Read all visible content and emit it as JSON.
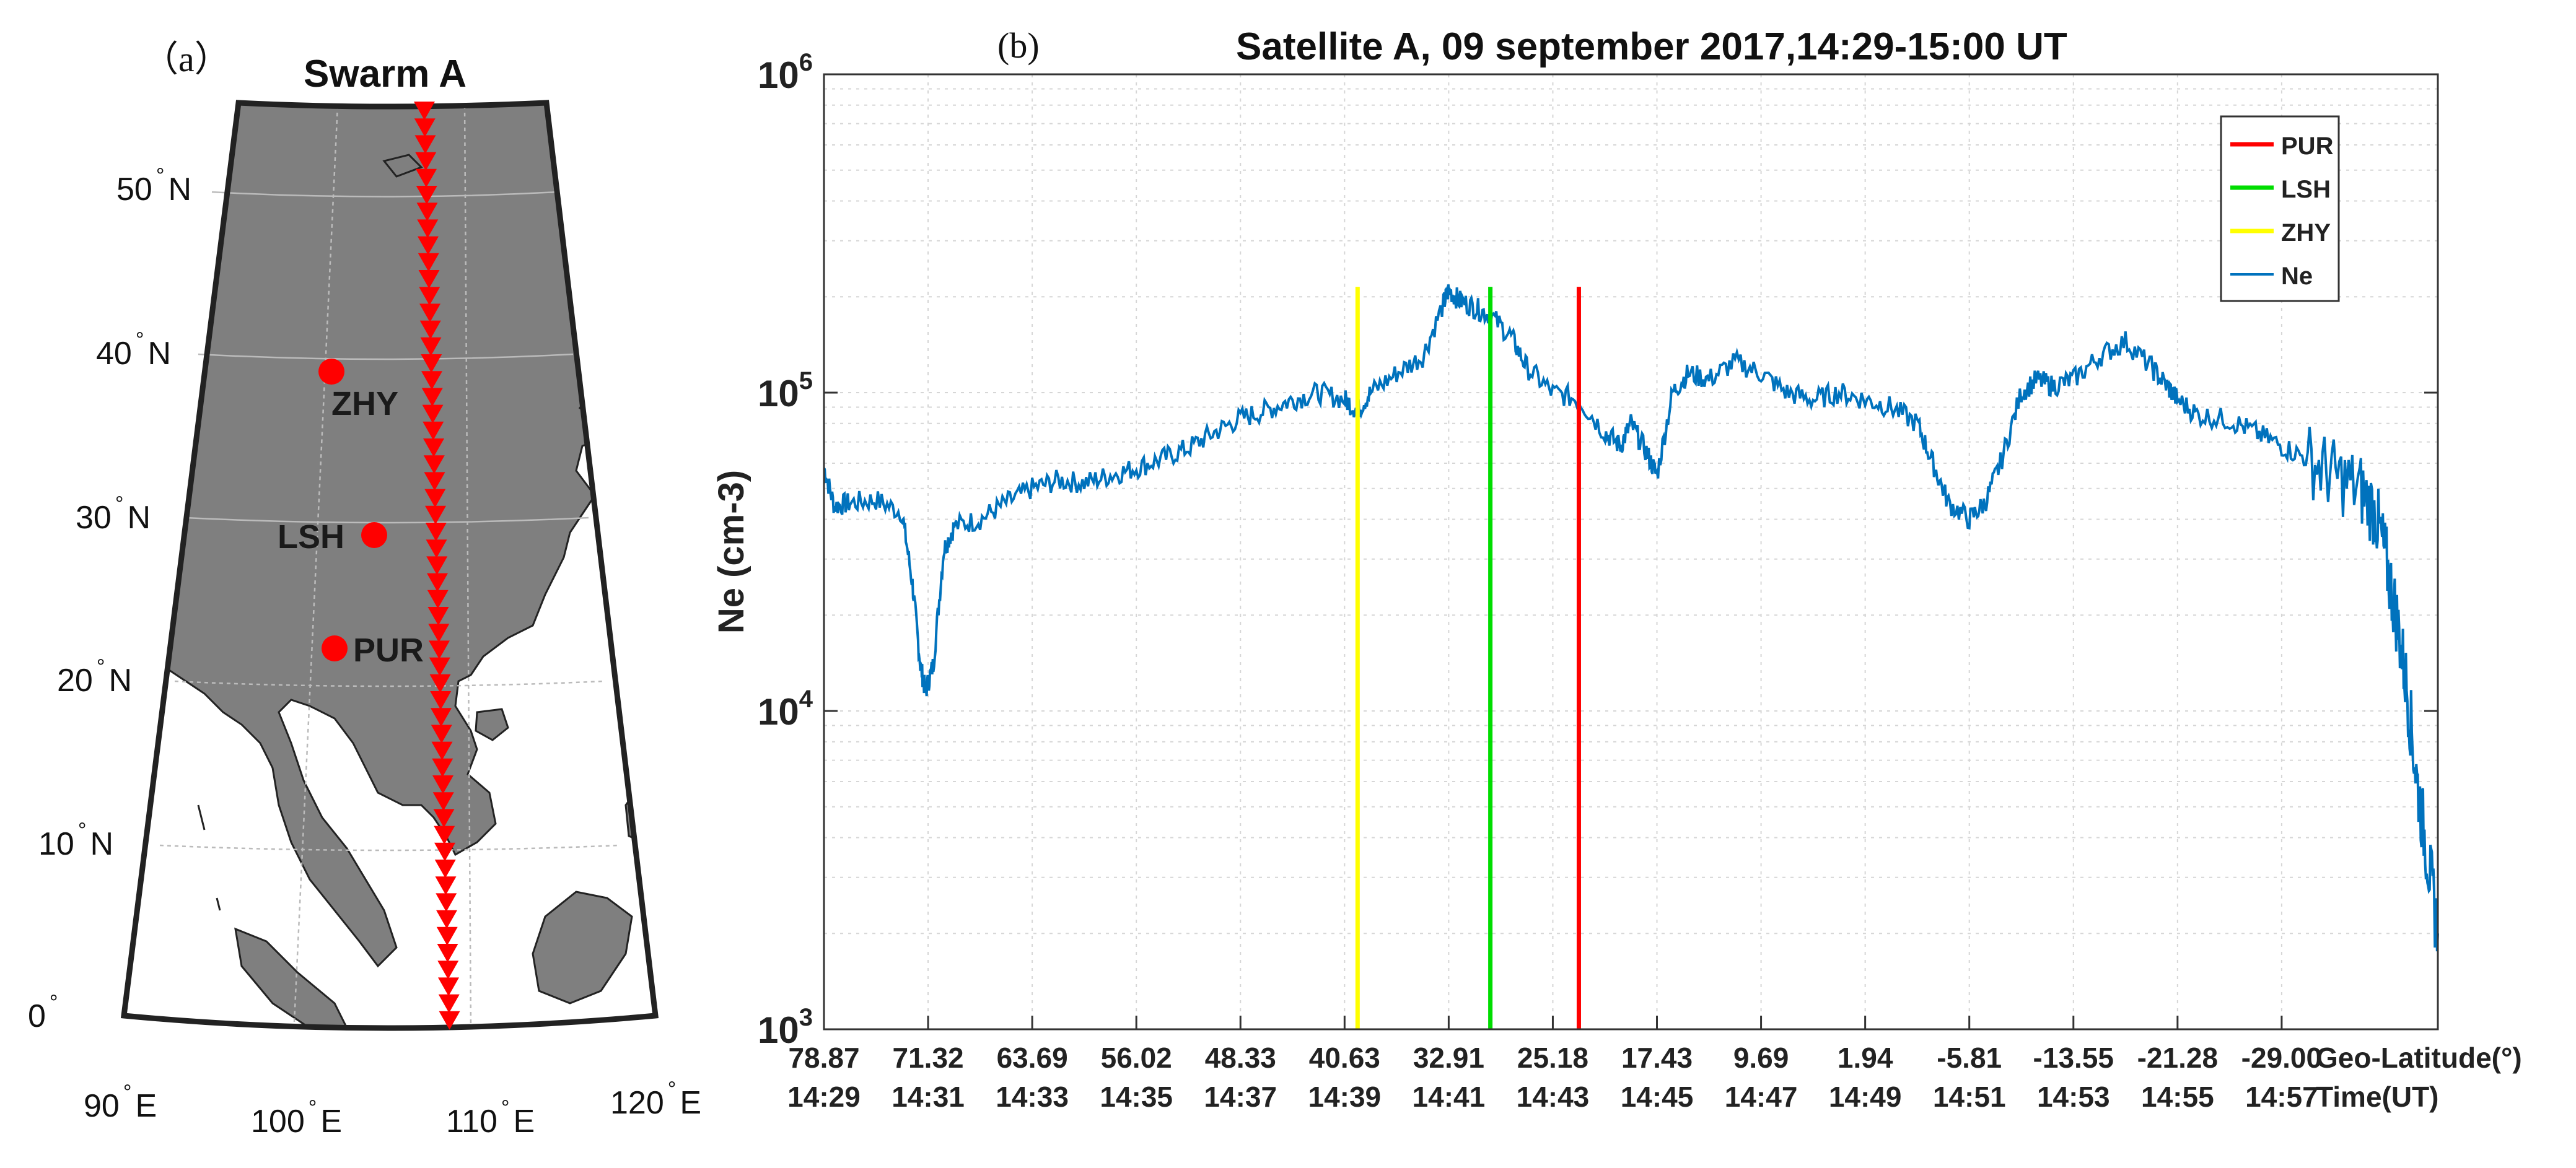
{
  "panel_a": {
    "label": "（a）",
    "title": "Swarm A",
    "lat_labels": [
      {
        "deg": "50",
        "hemi": "N"
      },
      {
        "deg": "40",
        "hemi": "N"
      },
      {
        "deg": "30",
        "hemi": "N"
      },
      {
        "deg": "20",
        "hemi": "N"
      },
      {
        "deg": "10",
        "hemi": "N"
      },
      {
        "deg": "0",
        "hemi": ""
      }
    ],
    "lon_labels": [
      {
        "deg": "90",
        "hemi": "E"
      },
      {
        "deg": "100",
        "hemi": "E"
      },
      {
        "deg": "110",
        "hemi": "E"
      },
      {
        "deg": "120",
        "hemi": "E"
      }
    ],
    "stations": [
      {
        "name": "ZHY",
        "lat": 38.5,
        "lon": 100.3
      },
      {
        "name": "LSH",
        "lat": 29.6,
        "lon": 102.2
      },
      {
        "name": "PUR",
        "lat": 23.0,
        "lon": 100.3
      }
    ],
    "track_name": "Swarm A track",
    "colors": {
      "land": "#7f7f7f",
      "station": "#ff0000",
      "track": "#ff0000"
    }
  },
  "panel_b": {
    "label": "(b)",
    "title": "Satellite A, 09 september 2017,14:29-15:00 UT",
    "axis_label_lat": "Geo-Latitude(°)",
    "axis_label_time": "Time(UT)",
    "legend": [
      {
        "name": "PUR",
        "color": "#ff0000"
      },
      {
        "name": "LSH",
        "color": "#00dd00"
      },
      {
        "name": "ZHY",
        "color": "#ffff00"
      },
      {
        "name": "Ne",
        "color": "#0072bd"
      }
    ]
  },
  "chart_data": {
    "type": "line",
    "title": "Satellite A, 09 september 2017,14:29-15:00 UT",
    "xlabel": "Geo-Latitude(°) / Time(UT)",
    "ylabel": "Ne (cm-3)",
    "yscale": "log",
    "ylim": [
      1000,
      1000000
    ],
    "xlim_minutes": [
      0,
      31
    ],
    "y_ticks": [
      {
        "base": "10",
        "exp": "3",
        "value": 1000
      },
      {
        "base": "10",
        "exp": "4",
        "value": 10000
      },
      {
        "base": "10",
        "exp": "5",
        "value": 100000
      },
      {
        "base": "10",
        "exp": "6",
        "value": 1000000
      }
    ],
    "x_ticks": [
      {
        "lat": "78.87",
        "time": "14:29",
        "minute": 0
      },
      {
        "lat": "71.32",
        "time": "14:31",
        "minute": 2
      },
      {
        "lat": "63.69",
        "time": "14:33",
        "minute": 4
      },
      {
        "lat": "56.02",
        "time": "14:35",
        "minute": 6
      },
      {
        "lat": "48.33",
        "time": "14:37",
        "minute": 8
      },
      {
        "lat": "40.63",
        "time": "14:39",
        "minute": 10
      },
      {
        "lat": "32.91",
        "time": "14:41",
        "minute": 12
      },
      {
        "lat": "25.18",
        "time": "14:43",
        "minute": 14
      },
      {
        "lat": "17.43",
        "time": "14:45",
        "minute": 16
      },
      {
        "lat": "9.69",
        "time": "14:47",
        "minute": 18
      },
      {
        "lat": "1.94",
        "time": "14:49",
        "minute": 20
      },
      {
        "lat": "-5.81",
        "time": "14:51",
        "minute": 22
      },
      {
        "lat": "-13.55",
        "time": "14:53",
        "minute": 24
      },
      {
        "lat": "-21.28",
        "time": "14:55",
        "minute": 26
      },
      {
        "lat": "-29.00",
        "time": "14:57",
        "minute": 28
      }
    ],
    "vertical_lines": [
      {
        "name": "ZHY",
        "minute": 10.25,
        "color": "#ffff00"
      },
      {
        "name": "LSH",
        "minute": 12.8,
        "color": "#00dd00"
      },
      {
        "name": "PUR",
        "minute": 14.5,
        "color": "#ff0000"
      }
    ],
    "series": [
      {
        "name": "Ne",
        "color": "#0072bd",
        "minutes": [
          0,
          0.2,
          0.5,
          1.0,
          1.5,
          1.7,
          1.85,
          1.95,
          2.1,
          2.3,
          2.5,
          3.0,
          3.5,
          4.0,
          4.5,
          5.0,
          5.5,
          6.0,
          6.5,
          7.0,
          7.5,
          8.0,
          8.5,
          9.0,
          9.5,
          10.0,
          10.25,
          10.5,
          11.0,
          11.5,
          11.9,
          12.0,
          12.2,
          12.5,
          12.8,
          13.2,
          13.5,
          14.0,
          14.5,
          15.0,
          15.3,
          15.5,
          15.8,
          16.0,
          16.3,
          16.6,
          17.0,
          17.5,
          18.0,
          18.5,
          19.0,
          19.5,
          20.0,
          20.5,
          21.0,
          21.3,
          21.6,
          22.0,
          22.3,
          22.6,
          23.0,
          23.3,
          23.6,
          24.0,
          24.5,
          25.0,
          25.5,
          25.8,
          26.0,
          26.4,
          27.0,
          27.5,
          28.0,
          28.5,
          29.0,
          29.5,
          29.8,
          30.0,
          30.2,
          30.4,
          30.6,
          30.8,
          31.0
        ],
        "values": [
          58000,
          44000,
          45000,
          46000,
          42000,
          25000,
          14000,
          11500,
          14000,
          32000,
          38000,
          40000,
          45000,
          50000,
          53000,
          52000,
          55000,
          58000,
          62000,
          67000,
          75000,
          83000,
          88000,
          95000,
          100000,
          95000,
          88000,
          100000,
          115000,
          130000,
          190000,
          210000,
          195000,
          185000,
          175000,
          150000,
          120000,
          100000,
          95000,
          75000,
          68000,
          80000,
          65000,
          55000,
          100000,
          115000,
          110000,
          125000,
          115000,
          100000,
          95000,
          100000,
          95000,
          90000,
          80000,
          60000,
          45000,
          40000,
          45000,
          60000,
          100000,
          110000,
          105000,
          110000,
          130000,
          145000,
          120000,
          105000,
          95000,
          85000,
          82000,
          75000,
          68000,
          62000,
          55000,
          50000,
          42000,
          30000,
          20000,
          12000,
          6000,
          3500,
          2000
        ]
      }
    ]
  }
}
